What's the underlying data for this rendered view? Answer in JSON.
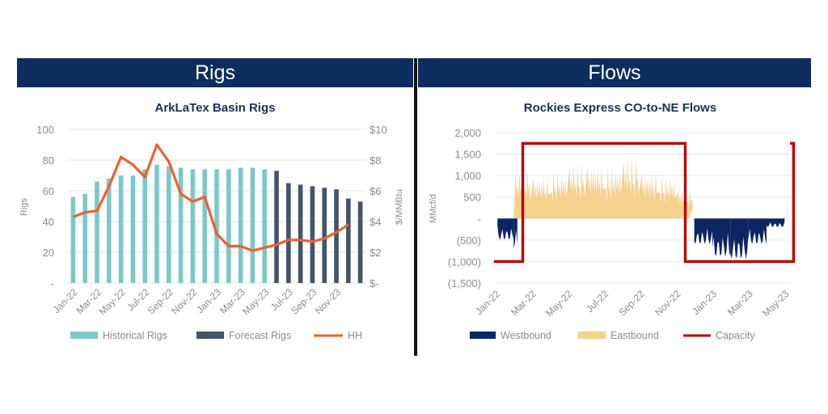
{
  "panels": {
    "left_header": "Rigs",
    "right_header": "Flows"
  },
  "colors": {
    "header_bg": "#0d2d5e",
    "historical_rigs": "#7cc8c8",
    "forecast_rigs": "#44546a",
    "hh": "#ee6030",
    "westbound": "#0d2563",
    "eastbound": "#f5d28c",
    "capacity": "#c00000",
    "title_text": "#14325c",
    "axis_text": "#8c8c8c"
  },
  "chart_data": [
    {
      "type": "bar",
      "title": "ArkLaTex Basin Rigs",
      "ylabel": "Rigs",
      "y2label": "$/MMBtu",
      "ylim": [
        0,
        100
      ],
      "y2lim": [
        0,
        10
      ],
      "yticks": [
        "-",
        "20",
        "40",
        "60",
        "80",
        "100"
      ],
      "y2ticks": [
        "$-",
        "$2",
        "$4",
        "$6",
        "$8",
        "$10"
      ],
      "x_tick_labels": [
        "Jan-22",
        "Mar-22",
        "May-22",
        "Jul-22",
        "Sep-22",
        "Nov-22",
        "Jan-23",
        "Mar-23",
        "May-23",
        "Jul-23",
        "Sep-23",
        "Nov-23"
      ],
      "categories": [
        "Jan-22",
        "Feb-22",
        "Mar-22",
        "Apr-22",
        "May-22",
        "Jun-22",
        "Jul-22",
        "Aug-22",
        "Sep-22",
        "Oct-22",
        "Nov-22",
        "Dec-22",
        "Jan-23",
        "Feb-23",
        "Mar-23",
        "Apr-23",
        "May-23",
        "Jun-23",
        "Jul-23",
        "Aug-23",
        "Sep-23",
        "Oct-23",
        "Nov-23",
        "Dec-23"
      ],
      "series": [
        {
          "name": "Historical Rigs",
          "kind": "bar",
          "values": [
            56,
            58,
            66,
            68,
            70,
            70,
            74,
            77,
            76,
            75,
            74,
            74,
            74,
            74,
            75,
            75,
            74,
            null,
            null,
            null,
            null,
            null,
            null,
            null
          ]
        },
        {
          "name": "Forecast Rigs",
          "kind": "bar",
          "values": [
            null,
            null,
            null,
            null,
            null,
            null,
            null,
            null,
            null,
            null,
            null,
            null,
            null,
            null,
            null,
            null,
            null,
            73,
            65,
            64,
            63,
            62,
            61,
            55
          ]
        },
        {
          "name": "HH",
          "kind": "line",
          "axis": "y2",
          "values": [
            4.3,
            4.6,
            4.7,
            6.3,
            8.2,
            7.7,
            6.9,
            9.0,
            7.9,
            5.8,
            5.3,
            5.6,
            3.2,
            2.4,
            2.4,
            2.1,
            2.3,
            2.5,
            2.8,
            2.8,
            2.7,
            2.9,
            3.3,
            3.8
          ]
        }
      ],
      "extra_last_forecast": 53,
      "legend": "bottom"
    },
    {
      "type": "area",
      "title": "Rockies Express CO-to-NE Flows",
      "ylabel": "MMcf/d",
      "ylim": [
        -1500,
        2000
      ],
      "yticks": [
        "(1,500)",
        "(1,000)",
        "(500)",
        "-",
        "500",
        "1,000",
        "1,500",
        "2,000"
      ],
      "x_tick_labels": [
        "Jan-22",
        "Mar-22",
        "May-22",
        "Jul-22",
        "Sep-22",
        "Nov-22",
        "Jan-23",
        "Mar-23",
        "May-23"
      ],
      "series": [
        {
          "name": "Westbound",
          "kind": "area",
          "description_values": [
            {
              "period": "Jan-22",
              "min": -500
            },
            {
              "period": "Feb-22",
              "min": -700
            },
            {
              "period": "Dec-22",
              "min": -600
            },
            {
              "period": "Jan-23",
              "min": -900
            },
            {
              "period": "Feb-23",
              "min": -950
            },
            {
              "period": "Mar-23",
              "min": -600
            },
            {
              "period": "Apr-23",
              "min": -200
            }
          ]
        },
        {
          "name": "Eastbound",
          "kind": "area",
          "description_values": [
            {
              "period": "Feb-22",
              "max": 1150
            },
            {
              "period": "Mar-22",
              "max": 1000
            },
            {
              "period": "Apr-22",
              "max": 1100
            },
            {
              "period": "May-22",
              "max": 1300
            },
            {
              "period": "Jun-22",
              "max": 1250
            },
            {
              "period": "Jul-22",
              "max": 1200
            },
            {
              "period": "Aug-22",
              "max": 1450
            },
            {
              "period": "Sep-22",
              "max": 1100
            },
            {
              "period": "Oct-22",
              "max": 1000
            },
            {
              "period": "Nov-22",
              "max": 700
            }
          ]
        },
        {
          "name": "Capacity",
          "kind": "line",
          "segments": [
            {
              "from": "Jan-22",
              "to": "Feb-22",
              "value": -1000
            },
            {
              "from": "Feb-22",
              "to": "Nov-22",
              "value": 1750
            },
            {
              "from": "Nov-22",
              "to": "May-23",
              "value": -1000
            },
            {
              "from": "May-23",
              "to": "May-23",
              "value": 1750
            }
          ]
        }
      ],
      "legend": "bottom"
    }
  ]
}
